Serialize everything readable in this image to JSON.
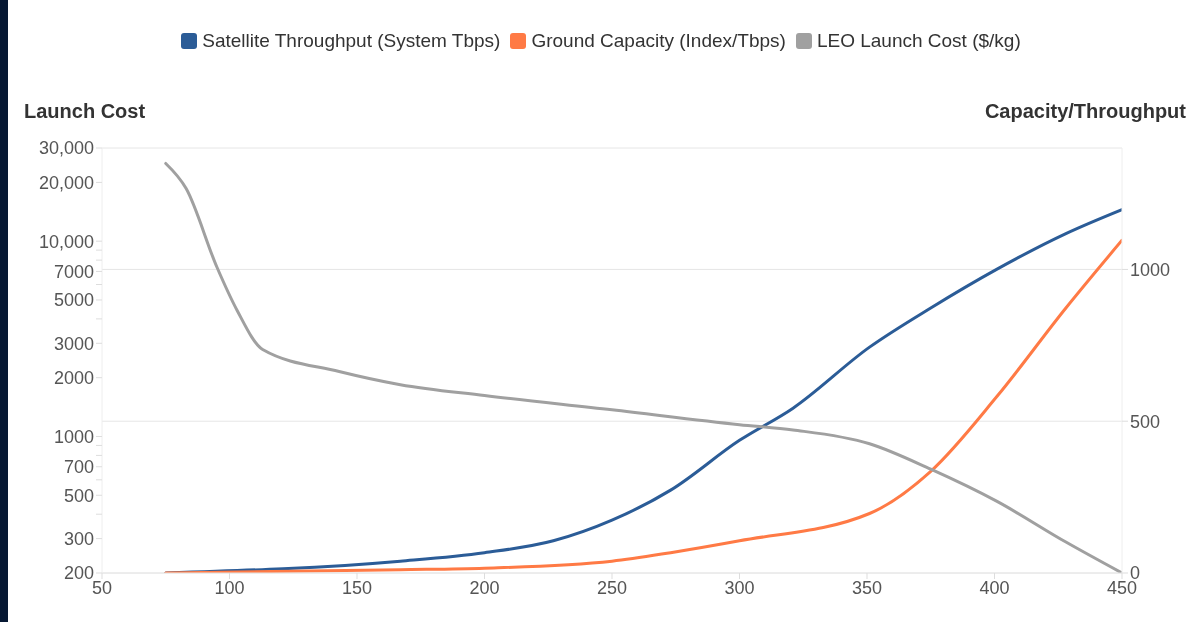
{
  "chart_data": {
    "type": "line",
    "ylabel": "Launch Cost",
    "y2label": "Capacity/Throughput",
    "series": [
      {
        "name": "Satellite Throughput (System Tbps)",
        "color": "#2b5c97",
        "axis": "y2",
        "x": [
          75,
          167,
          200,
          227,
          250,
          273,
          300,
          321,
          351,
          375,
          401,
          428,
          450
        ],
        "values": [
          0,
          39,
          67,
          106,
          174,
          273,
          437,
          543,
          744,
          873,
          1001,
          1118,
          1197
        ]
      },
      {
        "name": "Ground Capacity (Index/Tbps)",
        "color": "#ff7a45",
        "axis": "y2",
        "x": [
          75,
          167,
          200,
          250,
          273,
          300,
          351,
          375,
          401,
          428,
          450
        ],
        "values": [
          0,
          11,
          16,
          39,
          67,
          106,
          196,
          335,
          582,
          873,
          1096
        ]
      },
      {
        "name": "LEO Launch Cost ($/kg)",
        "color": "#a0a0a0",
        "axis": "y",
        "x": [
          75,
          83,
          95,
          103,
          113,
          143,
          167,
          200,
          250,
          300,
          321,
          351,
          375,
          401,
          428,
          450
        ],
        "values": [
          25000,
          18600,
          7400,
          4420,
          2790,
          2150,
          1840,
          1620,
          1370,
          1150,
          1080,
          918,
          680,
          465,
          288,
          200
        ]
      }
    ],
    "xlim": [
      50,
      450
    ],
    "xticks": [
      50,
      100,
      150,
      200,
      250,
      300,
      350,
      400,
      450
    ],
    "log": "y",
    "ylim": [
      200,
      30000
    ],
    "yticks": [
      200,
      300,
      {
        "value": 400,
        "label": null
      },
      500,
      {
        "value": 600,
        "label": null
      },
      700,
      {
        "value": 800,
        "label": null
      },
      {
        "value": 900,
        "label": null
      },
      1000,
      2000,
      3000,
      {
        "value": 4000,
        "label": null
      },
      5000,
      {
        "value": 6000,
        "label": null
      },
      7000,
      {
        "value": 8000,
        "label": null
      },
      {
        "value": 9000,
        "label": null
      },
      {
        "value": 10000,
        "label": "10,000"
      },
      {
        "value": 20000,
        "label": "20,000"
      },
      {
        "value": 30000,
        "label": "30,000"
      }
    ],
    "y2lim": [
      0,
      1400
    ],
    "y2ticks": [
      0,
      500,
      1000
    ],
    "grid": "y",
    "legend": "top"
  }
}
